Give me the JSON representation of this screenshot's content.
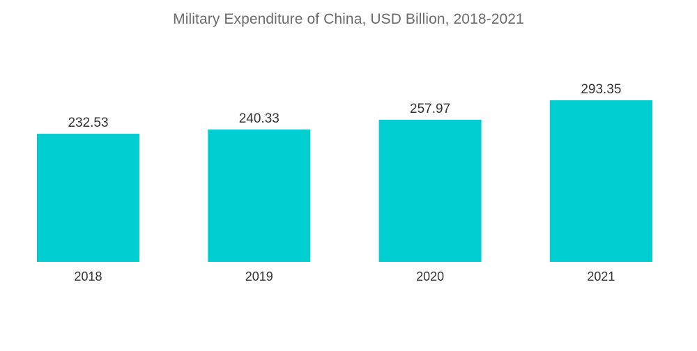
{
  "chart_data": {
    "type": "bar",
    "title": "Military Expenditure of China, USD Billion, 2018-2021",
    "categories": [
      "2018",
      "2019",
      "2020",
      "2021"
    ],
    "values": [
      232.53,
      240.33,
      257.97,
      293.35
    ],
    "value_labels": [
      "232.53",
      "240.33",
      "257.97",
      "293.35"
    ],
    "xlabel": "",
    "ylabel": "",
    "ylim": [
      0,
      293.35
    ],
    "grid": false,
    "legend": "none",
    "bar_color": "#00CED1"
  }
}
